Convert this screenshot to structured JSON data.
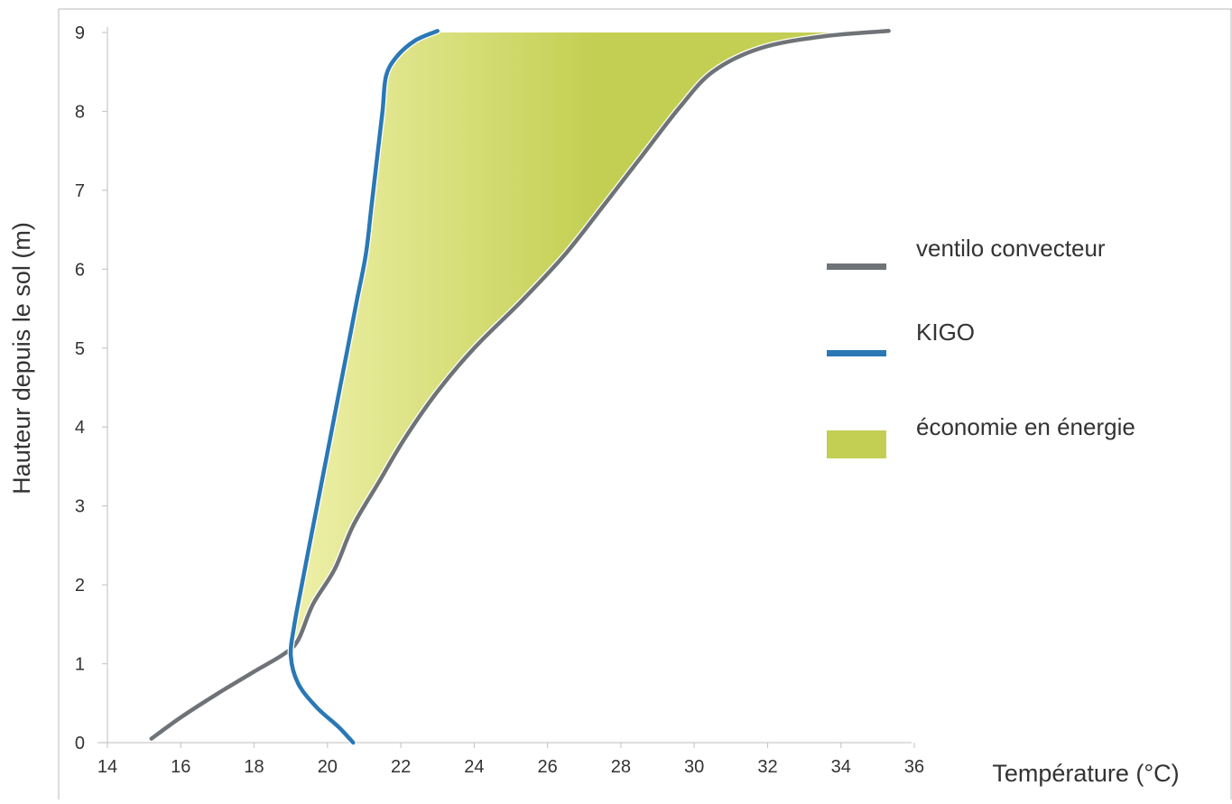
{
  "chart_data": {
    "type": "line",
    "title": "",
    "xlabel": "Température (°C)",
    "ylabel": "Hauteur depuis le sol (m)",
    "xlim": [
      14,
      36
    ],
    "ylim": [
      0,
      9
    ],
    "x_ticks": [
      "14",
      "16",
      "18",
      "20",
      "22",
      "24",
      "26",
      "28",
      "30",
      "32",
      "34",
      "36"
    ],
    "y_ticks": [
      "0",
      "1",
      "2",
      "3",
      "4",
      "5",
      "6",
      "7",
      "8",
      "9"
    ],
    "grid": false,
    "legend_position": "right",
    "series": [
      {
        "name": "ventilo convecteur",
        "color": "#6e7378",
        "points": [
          [
            15.2,
            0.05
          ],
          [
            16.0,
            0.32
          ],
          [
            17.0,
            0.62
          ],
          [
            18.0,
            0.9
          ],
          [
            18.8,
            1.12
          ],
          [
            19.2,
            1.3
          ],
          [
            19.6,
            1.75
          ],
          [
            20.2,
            2.2
          ],
          [
            20.7,
            2.75
          ],
          [
            21.4,
            3.3
          ],
          [
            22.1,
            3.85
          ],
          [
            23.0,
            4.45
          ],
          [
            24.0,
            5.0
          ],
          [
            25.3,
            5.6
          ],
          [
            26.5,
            6.2
          ],
          [
            27.6,
            6.85
          ],
          [
            28.6,
            7.45
          ],
          [
            29.6,
            8.05
          ],
          [
            30.5,
            8.5
          ],
          [
            31.8,
            8.8
          ],
          [
            33.5,
            8.95
          ],
          [
            35.3,
            9.02
          ]
        ]
      },
      {
        "name": "KIGO",
        "color": "#2a78b5",
        "points": [
          [
            20.7,
            0.0
          ],
          [
            20.3,
            0.2
          ],
          [
            19.7,
            0.45
          ],
          [
            19.2,
            0.75
          ],
          [
            19.0,
            1.1
          ],
          [
            19.1,
            1.5
          ],
          [
            19.3,
            2.0
          ],
          [
            19.55,
            2.6
          ],
          [
            19.8,
            3.2
          ],
          [
            20.05,
            3.8
          ],
          [
            20.3,
            4.4
          ],
          [
            20.55,
            5.0
          ],
          [
            20.8,
            5.6
          ],
          [
            21.05,
            6.2
          ],
          [
            21.2,
            6.8
          ],
          [
            21.35,
            7.4
          ],
          [
            21.5,
            8.0
          ],
          [
            21.6,
            8.45
          ],
          [
            21.9,
            8.7
          ],
          [
            22.4,
            8.9
          ],
          [
            23.0,
            9.02
          ]
        ]
      }
    ],
    "area": {
      "name": "économie en énergie",
      "color": "#c3cf52",
      "light_color": "#eef0a8",
      "top_y": 9.0,
      "top_x_range": [
        23.0,
        34.0
      ]
    }
  }
}
